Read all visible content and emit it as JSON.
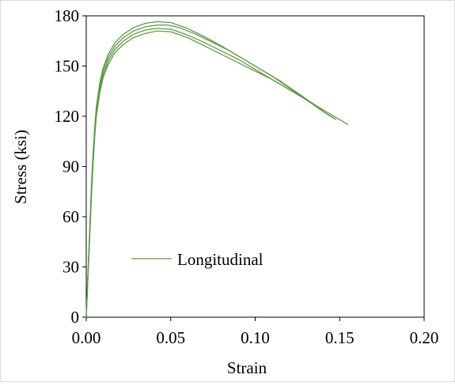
{
  "chart_data": {
    "type": "line",
    "title": "",
    "xlabel": "Strain",
    "ylabel": "Stress (ksi)",
    "xlim": [
      0,
      0.2
    ],
    "ylim": [
      0,
      180
    ],
    "x_ticks": [
      "0.00",
      "0.05",
      "0.10",
      "0.15",
      "0.20"
    ],
    "y_ticks": [
      "0",
      "30",
      "60",
      "90",
      "120",
      "150",
      "180"
    ],
    "grid": false,
    "legend": {
      "position": "center-left",
      "entries": [
        "Longitudinal"
      ]
    },
    "colors": {
      "series": "#5e9c43"
    },
    "series": [
      {
        "name": "Longitudinal",
        "points": [
          [
            0,
            0
          ],
          [
            0.001,
            25
          ],
          [
            0.002,
            50
          ],
          [
            0.003,
            75
          ],
          [
            0.004,
            95
          ],
          [
            0.005,
            112
          ],
          [
            0.006,
            124
          ],
          [
            0.008,
            138
          ],
          [
            0.01,
            147
          ],
          [
            0.013,
            155
          ],
          [
            0.017,
            162
          ],
          [
            0.022,
            167
          ],
          [
            0.028,
            171
          ],
          [
            0.035,
            173.5
          ],
          [
            0.042,
            174.5
          ],
          [
            0.048,
            174.5
          ],
          [
            0.055,
            173
          ],
          [
            0.065,
            169
          ],
          [
            0.075,
            164
          ],
          [
            0.085,
            159
          ],
          [
            0.095,
            153
          ],
          [
            0.105,
            147
          ],
          [
            0.115,
            141
          ],
          [
            0.125,
            134
          ],
          [
            0.135,
            127
          ],
          [
            0.143,
            121
          ]
        ]
      },
      {
        "points": [
          [
            0,
            0
          ],
          [
            0.001,
            24
          ],
          [
            0.002,
            48
          ],
          [
            0.003,
            72
          ],
          [
            0.004,
            92
          ],
          [
            0.005,
            110
          ],
          [
            0.006,
            122
          ],
          [
            0.008,
            136
          ],
          [
            0.01,
            145
          ],
          [
            0.013,
            153
          ],
          [
            0.017,
            160
          ],
          [
            0.022,
            165
          ],
          [
            0.028,
            169
          ],
          [
            0.035,
            171.5
          ],
          [
            0.042,
            172.5
          ],
          [
            0.05,
            172
          ],
          [
            0.06,
            168.5
          ],
          [
            0.07,
            164
          ],
          [
            0.08,
            159
          ],
          [
            0.09,
            154
          ],
          [
            0.1,
            148
          ],
          [
            0.11,
            142
          ],
          [
            0.12,
            136
          ],
          [
            0.13,
            130
          ],
          [
            0.14,
            123
          ],
          [
            0.146,
            119
          ]
        ]
      },
      {
        "points": [
          [
            0,
            0
          ],
          [
            0.001,
            26
          ],
          [
            0.002,
            52
          ],
          [
            0.003,
            77
          ],
          [
            0.004,
            97
          ],
          [
            0.005,
            114
          ],
          [
            0.006,
            126
          ],
          [
            0.008,
            140
          ],
          [
            0.01,
            149
          ],
          [
            0.013,
            157
          ],
          [
            0.017,
            164
          ],
          [
            0.022,
            169
          ],
          [
            0.028,
            173
          ],
          [
            0.035,
            175.5
          ],
          [
            0.042,
            176.5
          ],
          [
            0.05,
            176
          ],
          [
            0.06,
            172.5
          ],
          [
            0.07,
            167.5
          ],
          [
            0.08,
            162
          ],
          [
            0.09,
            156
          ],
          [
            0.1,
            150
          ],
          [
            0.11,
            144
          ],
          [
            0.12,
            137
          ],
          [
            0.13,
            130
          ],
          [
            0.14,
            123
          ],
          [
            0.148,
            118
          ]
        ]
      },
      {
        "points": [
          [
            0,
            0
          ],
          [
            0.001,
            23
          ],
          [
            0.002,
            47
          ],
          [
            0.003,
            71
          ],
          [
            0.004,
            90
          ],
          [
            0.005,
            108
          ],
          [
            0.006,
            120
          ],
          [
            0.008,
            134
          ],
          [
            0.01,
            143
          ],
          [
            0.013,
            151
          ],
          [
            0.017,
            158
          ],
          [
            0.022,
            163
          ],
          [
            0.028,
            167
          ],
          [
            0.035,
            169.5
          ],
          [
            0.042,
            171
          ],
          [
            0.05,
            170.5
          ],
          [
            0.06,
            167
          ],
          [
            0.07,
            162
          ],
          [
            0.08,
            157
          ],
          [
            0.09,
            152
          ],
          [
            0.1,
            147
          ],
          [
            0.11,
            142
          ],
          [
            0.12,
            136
          ],
          [
            0.13,
            130
          ],
          [
            0.14,
            124
          ],
          [
            0.15,
            118
          ],
          [
            0.155,
            115
          ]
        ]
      }
    ]
  }
}
